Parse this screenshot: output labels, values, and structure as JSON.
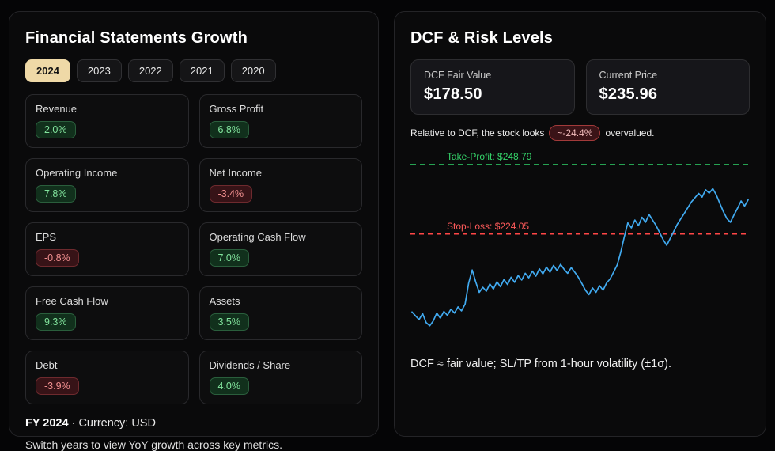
{
  "left_panel": {
    "title": "Financial Statements Growth",
    "active_year": "2024",
    "years": [
      "2024",
      "2023",
      "2022",
      "2021",
      "2020"
    ],
    "metrics": [
      {
        "label": "Revenue",
        "value": "2.0%"
      },
      {
        "label": "Gross Profit",
        "value": "6.8%"
      },
      {
        "label": "Operating Income",
        "value": "7.8%"
      },
      {
        "label": "Net Income",
        "value": "-3.4%"
      },
      {
        "label": "EPS",
        "value": "-0.8%"
      },
      {
        "label": "Operating Cash Flow",
        "value": "7.0%"
      },
      {
        "label": "Free Cash Flow",
        "value": "9.3%"
      },
      {
        "label": "Assets",
        "value": "3.5%"
      },
      {
        "label": "Debt",
        "value": "-3.9%"
      },
      {
        "label": "Dividends / Share",
        "value": "4.0%"
      }
    ],
    "footer_year": "FY 2024",
    "footer_currency": " · Currency: USD",
    "footer_hint": "Switch years to view YoY growth across key metrics."
  },
  "right_panel": {
    "title": "DCF & Risk Levels",
    "stat_cards": [
      {
        "label": "DCF Fair Value",
        "value": "$178.50"
      },
      {
        "label": "Current Price",
        "value": "$235.96"
      }
    ],
    "note_prefix": "Relative to DCF, the stock looks",
    "note_badge": "~-24.4%",
    "note_suffix": "overvalued.",
    "caption": "DCF ≈ fair value; SL/TP from 1-hour volatility (±1σ)."
  },
  "chart_data": {
    "type": "line",
    "take_profit": {
      "label": "Take-Profit: $248.79",
      "value": 248.79
    },
    "stop_loss": {
      "label": "Stop-Loss: $224.05",
      "value": 224.05
    },
    "ylim": [
      185,
      255
    ],
    "grid": false,
    "legend": false,
    "series": [
      {
        "name": "Price (1-hour)",
        "values": [
          196.2,
          194.8,
          193.5,
          195.6,
          192.4,
          191.3,
          193.0,
          195.8,
          194.0,
          196.4,
          195.0,
          197.2,
          195.8,
          198.0,
          196.6,
          199.0,
          206.5,
          211.2,
          207.0,
          203.2,
          205.0,
          203.6,
          206.2,
          204.4,
          207.0,
          205.2,
          207.8,
          206.0,
          208.6,
          206.8,
          209.2,
          207.6,
          210.0,
          208.4,
          210.8,
          209.0,
          211.6,
          209.8,
          212.2,
          210.4,
          212.8,
          211.0,
          213.2,
          211.4,
          210.0,
          212.0,
          210.4,
          208.6,
          206.4,
          204.0,
          202.4,
          204.8,
          203.2,
          205.6,
          204.0,
          206.6,
          208.0,
          210.5,
          213.0,
          217.5,
          223.0,
          228.0,
          226.2,
          229.0,
          227.0,
          230.0,
          228.2,
          231.0,
          229.0,
          227.0,
          224.5,
          222.0,
          220.0,
          222.5,
          225.0,
          227.5,
          229.5,
          231.5,
          233.5,
          235.5,
          237.0,
          238.5,
          237.2,
          239.8,
          238.6,
          240.2,
          238.0,
          235.0,
          232.0,
          229.5,
          228.2,
          230.8,
          233.2,
          235.8,
          234.0,
          236.2
        ]
      }
    ],
    "colors": {
      "price": "#41aaf0",
      "take_profit": "#2fd56a",
      "stop_loss": "#ff4646"
    }
  }
}
